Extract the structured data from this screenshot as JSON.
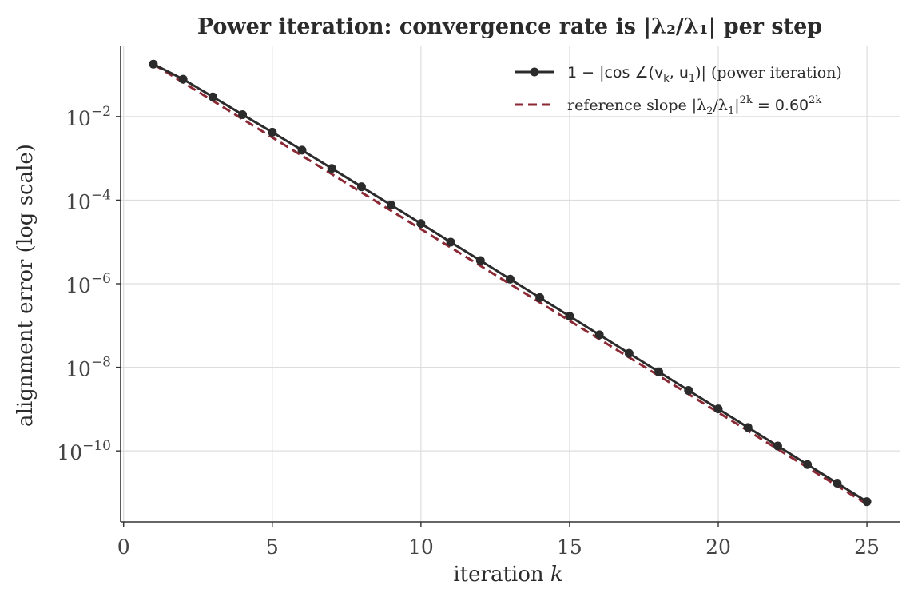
{
  "chart_data": {
    "type": "line",
    "title": "Power iteration: convergence rate is |λ₂/λ₁| per step",
    "xlabel": "iteration k",
    "ylabel": "alignment error (log scale)",
    "yscale": "log",
    "xlim": [
      -0.1,
      26.1
    ],
    "ylim": [
      2e-12,
      0.5
    ],
    "xticks": [
      0,
      5,
      10,
      15,
      20,
      25
    ],
    "yticks": [
      {
        "value": 0.01,
        "mantissa": "10",
        "exponent": "−2"
      },
      {
        "value": 0.0001,
        "mantissa": "10",
        "exponent": "−4"
      },
      {
        "value": 1e-06,
        "mantissa": "10",
        "exponent": "−6"
      },
      {
        "value": 1e-08,
        "mantissa": "10",
        "exponent": "−8"
      },
      {
        "value": 1e-10,
        "mantissa": "10",
        "exponent": "−10"
      }
    ],
    "grid": true,
    "legend_position": "top-right",
    "series": [
      {
        "name": "1 − |cos ∠(v_k, u_1)| (power iteration)",
        "legend_math": "1 − |cos ∠(v",
        "legend_sub1": "k",
        "legend_mid": ", u",
        "legend_sub2": "1",
        "legend_tail": ")| (power iteration)",
        "color": "#2b2b2b",
        "style": "solid-with-markers",
        "x": [
          1,
          2,
          3,
          4,
          5,
          6,
          7,
          8,
          9,
          10,
          11,
          12,
          13,
          14,
          15,
          16,
          17,
          18,
          19,
          20,
          21,
          22,
          23,
          24,
          25
        ],
        "values": [
          0.18,
          0.0784,
          0.0296,
          0.0111,
          0.00422,
          0.00157,
          0.000575,
          0.000209,
          7.6e-05,
          2.75e-05,
          9.9e-06,
          3.58e-06,
          1.29e-06,
          4.65e-07,
          1.67e-07,
          6e-08,
          2.16e-08,
          7.8e-09,
          2.8e-09,
          1.01e-09,
          3.64e-10,
          1.31e-10,
          4.71e-11,
          1.69e-11,
          6.1e-12
        ]
      },
      {
        "name": "reference slope |λ₂/λ₁|^{2k} = 0.60^{2k}",
        "legend_prefix": "reference slope |λ",
        "legend_sub1": "2",
        "legend_mid": "/λ",
        "legend_sub2": "1",
        "legend_pipe": "|",
        "legend_sup1": "2k",
        "legend_eq": " = 0.60",
        "legend_sup2": "2k",
        "color": "#8b2a35",
        "style": "dashed",
        "x": [
          1,
          25
        ],
        "values": [
          0.18,
          5.33e-12
        ]
      }
    ]
  }
}
